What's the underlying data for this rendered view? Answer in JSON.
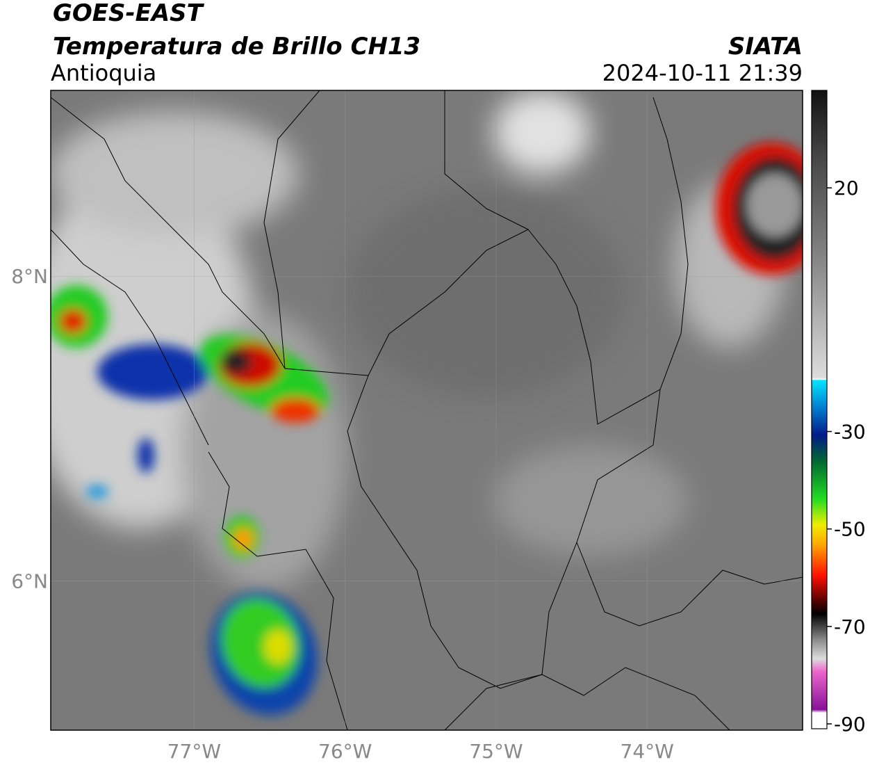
{
  "header": {
    "title": "GOES-EAST",
    "subtitle": "Temperatura de Brillo CH13",
    "region": "Antioquia",
    "source": "SIATA",
    "datetime": "2024-10-11 21:39"
  },
  "map": {
    "xlim": [
      -77.95,
      -72.97
    ],
    "ylim": [
      5.02,
      9.22
    ],
    "xticks": [
      {
        "value": -77,
        "label": "77°W"
      },
      {
        "value": -76,
        "label": "76°W"
      },
      {
        "value": -75,
        "label": "75°W"
      },
      {
        "value": -74,
        "label": "74°W"
      }
    ],
    "yticks": [
      {
        "value": 8,
        "label": "8°N"
      },
      {
        "value": 6,
        "label": "6°N"
      }
    ],
    "grid": true
  },
  "colorbar": {
    "clim": [
      -91,
      40
    ],
    "ticks": [
      20,
      -30,
      -50,
      -70,
      -90
    ]
  }
}
